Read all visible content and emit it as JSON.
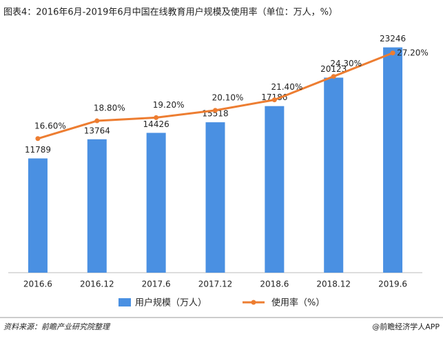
{
  "chart_data": {
    "type": "bar-line",
    "title": "图表4：2016年6月-2019年6月中国在线教育用户规模及使用率（单位：万人，%）",
    "categories": [
      "2016.6",
      "2016.12",
      "2017.6",
      "2017.12",
      "2018.6",
      "2018.12",
      "2019.6"
    ],
    "series": [
      {
        "name": "用户规模（万人）",
        "type": "bar",
        "color": "#4a90e2",
        "values": [
          11789,
          13764,
          14426,
          15518,
          17186,
          20123,
          23246
        ]
      },
      {
        "name": "使用率（%）",
        "type": "line",
        "axis": "y2",
        "color": "#ed7d31",
        "values": [
          16.6,
          18.8,
          19.2,
          20.1,
          21.4,
          24.3,
          27.2
        ],
        "value_labels": [
          "16.60%",
          "18.80%",
          "19.20%",
          "20.10%",
          "21.40%",
          "24.30%",
          "27.20%"
        ]
      }
    ],
    "ylim": [
      0,
      25000
    ],
    "y2lim": [
      0,
      30
    ],
    "legend": "bottom",
    "source": "资料来源：前瞻产业研究院整理",
    "credit": "@前瞻经济学人APP"
  }
}
